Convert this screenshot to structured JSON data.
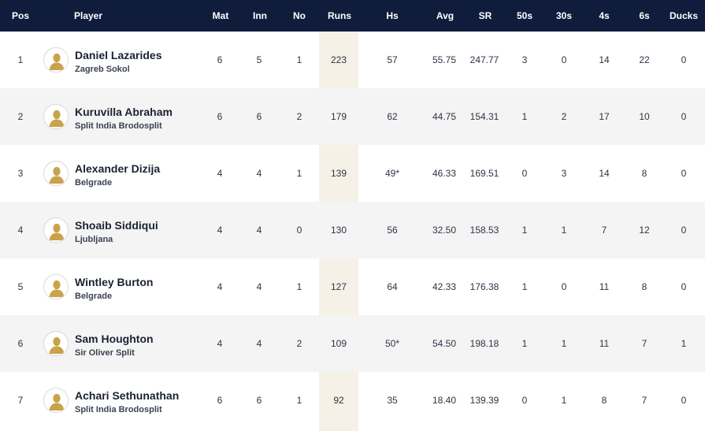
{
  "headers": {
    "pos": "Pos",
    "player": "Player",
    "mat": "Mat",
    "inn": "Inn",
    "no": "No",
    "runs": "Runs",
    "hs": "Hs",
    "avg": "Avg",
    "sr": "SR",
    "fifties": "50s",
    "thirties": "30s",
    "fours": "4s",
    "sixes": "6s",
    "ducks": "Ducks"
  },
  "rows": [
    {
      "pos": "1",
      "name": "Daniel Lazarides",
      "team": "Zagreb Sokol",
      "mat": "6",
      "inn": "5",
      "no": "1",
      "runs": "223",
      "hs": "57",
      "avg": "55.75",
      "sr": "247.77",
      "fifties": "3",
      "thirties": "0",
      "fours": "14",
      "sixes": "22",
      "ducks": "0"
    },
    {
      "pos": "2",
      "name": "Kuruvilla Abraham",
      "team": "Split India Brodosplit",
      "mat": "6",
      "inn": "6",
      "no": "2",
      "runs": "179",
      "hs": "62",
      "avg": "44.75",
      "sr": "154.31",
      "fifties": "1",
      "thirties": "2",
      "fours": "17",
      "sixes": "10",
      "ducks": "0"
    },
    {
      "pos": "3",
      "name": "Alexander Dizija",
      "team": "Belgrade",
      "mat": "4",
      "inn": "4",
      "no": "1",
      "runs": "139",
      "hs": "49*",
      "avg": "46.33",
      "sr": "169.51",
      "fifties": "0",
      "thirties": "3",
      "fours": "14",
      "sixes": "8",
      "ducks": "0"
    },
    {
      "pos": "4",
      "name": "Shoaib Siddiqui",
      "team": "Ljubljana",
      "mat": "4",
      "inn": "4",
      "no": "0",
      "runs": "130",
      "hs": "56",
      "avg": "32.50",
      "sr": "158.53",
      "fifties": "1",
      "thirties": "1",
      "fours": "7",
      "sixes": "12",
      "ducks": "0"
    },
    {
      "pos": "5",
      "name": "Wintley Burton",
      "team": "Belgrade",
      "mat": "4",
      "inn": "4",
      "no": "1",
      "runs": "127",
      "hs": "64",
      "avg": "42.33",
      "sr": "176.38",
      "fifties": "1",
      "thirties": "0",
      "fours": "11",
      "sixes": "8",
      "ducks": "0"
    },
    {
      "pos": "6",
      "name": "Sam Houghton",
      "team": "Sir Oliver Split",
      "mat": "4",
      "inn": "4",
      "no": "2",
      "runs": "109",
      "hs": "50*",
      "avg": "54.50",
      "sr": "198.18",
      "fifties": "1",
      "thirties": "1",
      "fours": "11",
      "sixes": "7",
      "ducks": "1"
    },
    {
      "pos": "7",
      "name": "Achari Sethunathan",
      "team": "Split India Brodosplit",
      "mat": "6",
      "inn": "6",
      "no": "1",
      "runs": "92",
      "hs": "35",
      "avg": "18.40",
      "sr": "139.39",
      "fifties": "0",
      "thirties": "1",
      "fours": "8",
      "sixes": "7",
      "ducks": "0"
    }
  ],
  "colors": {
    "header_bg": "#0f1c3c",
    "runs_column_bg": "#f6f1e7",
    "alt_row_bg": "#f4f4f4",
    "avatar_gold": "#c9a24a"
  },
  "icons": {
    "avatar": "player-silhouette-icon"
  }
}
